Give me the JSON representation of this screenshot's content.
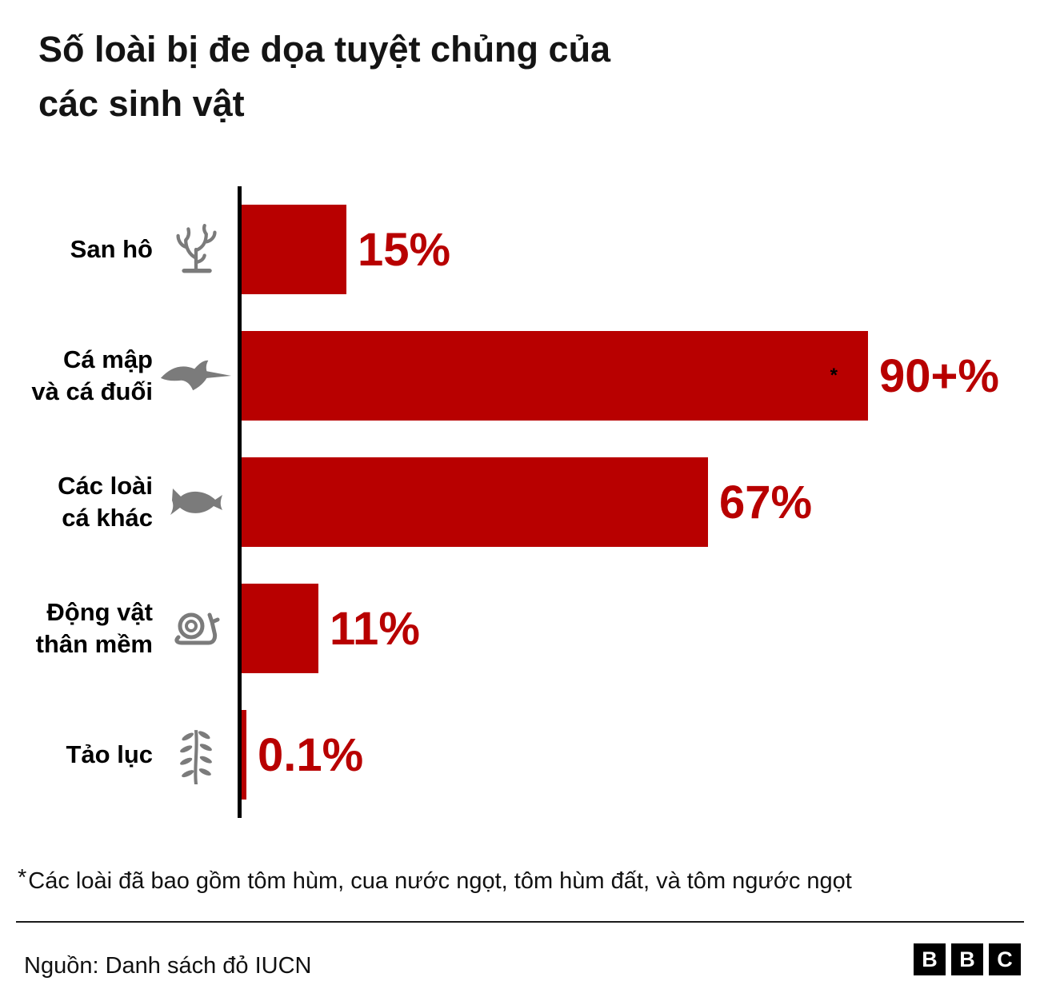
{
  "header": {
    "title_line1": "Số loài bị đe dọa tuyệt chủng của",
    "title_line2": "các sinh vật"
  },
  "chart_data": {
    "type": "bar",
    "orientation": "horizontal",
    "title": "Số loài bị đe dọa tuyệt chủng của các sinh vật",
    "unit": "%",
    "xlim": [
      0,
      100
    ],
    "bar_color": "#b80000",
    "axis_color": "#000000",
    "grid": false,
    "legend": false,
    "categories": [
      "San hô",
      "Cá mập và cá đuối",
      "Các loài cá khác",
      "Động vật thân mềm",
      "Tảo lục"
    ],
    "values": [
      15,
      90,
      67,
      11,
      0.1
    ],
    "value_labels": [
      "15%",
      "90+%",
      "67%",
      "11%",
      "0.1%"
    ],
    "rows": [
      {
        "label_lines": [
          "San hô"
        ],
        "icon": "coral-icon",
        "value": 15,
        "value_label": "15%"
      },
      {
        "label_lines": [
          "Cá mập",
          "và cá đuối"
        ],
        "icon": "ray-icon",
        "value": 90,
        "value_label": "90+%",
        "marker": "*"
      },
      {
        "label_lines": [
          "Các loài",
          "cá khác"
        ],
        "icon": "fish-icon",
        "value": 67,
        "value_label": "67%"
      },
      {
        "label_lines": [
          "Động vật",
          "thân mềm"
        ],
        "icon": "snail-icon",
        "value": 11,
        "value_label": "11%"
      },
      {
        "label_lines": [
          "Tảo lục"
        ],
        "icon": "seaweed-icon",
        "value": 0.1,
        "value_label": "0.1%"
      }
    ]
  },
  "footnote": {
    "star": "*",
    "text": "Các loài đã bao gồm tôm hùm, cua nước ngọt, tôm hùm đất, và tôm ngước ngọt"
  },
  "source": {
    "text": "Nguồn: Danh sách đỏ IUCN"
  },
  "logo": {
    "letters": [
      "B",
      "B",
      "C"
    ]
  }
}
